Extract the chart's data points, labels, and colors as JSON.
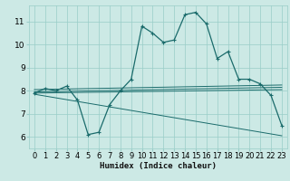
{
  "xlabel": "Humidex (Indice chaleur)",
  "xlim": [
    -0.5,
    23.5
  ],
  "ylim": [
    5.5,
    11.7
  ],
  "yticks": [
    6,
    7,
    8,
    9,
    10,
    11
  ],
  "xticks": [
    0,
    1,
    2,
    3,
    4,
    5,
    6,
    7,
    8,
    9,
    10,
    11,
    12,
    13,
    14,
    15,
    16,
    17,
    18,
    19,
    20,
    21,
    22,
    23
  ],
  "bg_color": "#cce9e5",
  "grid_color": "#99cdc8",
  "line_color": "#1a6b6b",
  "line1_x": [
    0,
    1,
    2,
    3,
    4,
    5,
    6,
    7,
    8,
    9,
    10,
    11,
    12,
    13,
    14,
    15,
    16,
    17,
    18,
    19,
    20,
    21,
    22,
    23
  ],
  "line1_y": [
    7.9,
    8.1,
    8.0,
    8.2,
    7.6,
    6.1,
    6.2,
    7.4,
    8.0,
    8.5,
    10.8,
    10.5,
    10.1,
    10.2,
    11.3,
    11.4,
    10.9,
    9.4,
    9.7,
    8.5,
    8.5,
    8.3,
    7.8,
    6.5
  ],
  "line2_x": [
    0,
    23
  ],
  "line2_y": [
    7.95,
    8.15
  ],
  "line3_x": [
    0,
    23
  ],
  "line3_y": [
    8.05,
    8.25
  ],
  "line4_x": [
    0,
    23
  ],
  "line4_y": [
    7.9,
    8.05
  ],
  "line5_x": [
    0,
    23
  ],
  "line5_y": [
    7.85,
    6.05
  ],
  "tick_fontsize": 6,
  "xlabel_fontsize": 6.5,
  "linewidth_main": 0.9,
  "linewidth_trend": 0.7,
  "marker_size": 2.5,
  "marker_lw": 0.8
}
